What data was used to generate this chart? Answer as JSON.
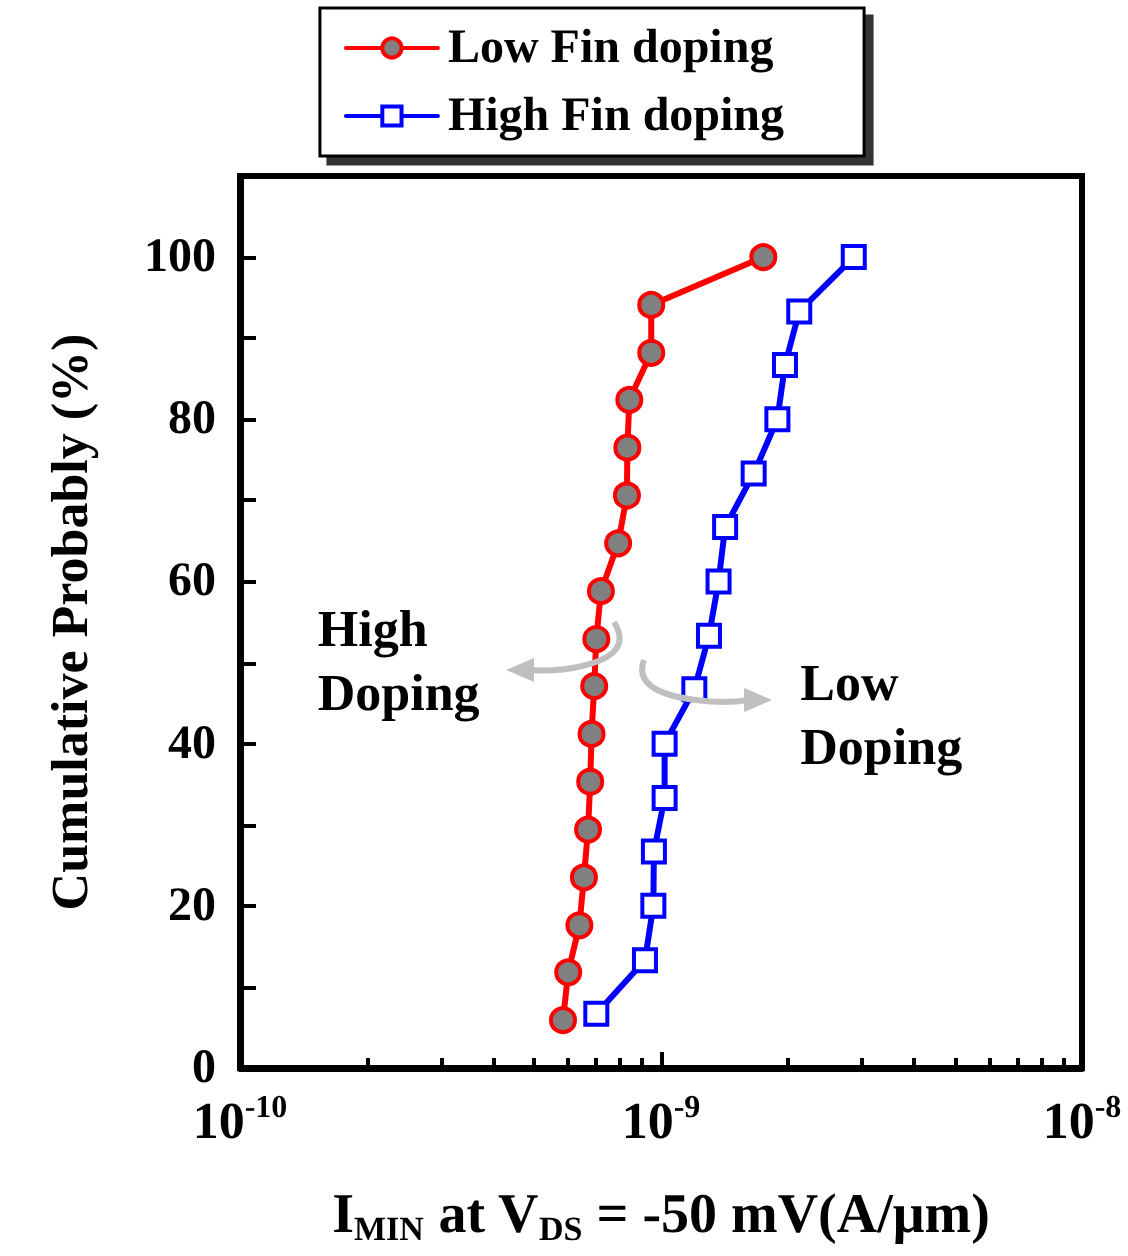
{
  "chart_data": {
    "type": "line",
    "xlabel": "I$_{MIN}$ at V$_{DS}$ = -50 mV(A/μm)",
    "ylabel": "Cumulative Probably (%)",
    "log": "x",
    "xlim": [
      1e-10,
      1e-08
    ],
    "xticks": [
      {
        "value": 1e-10,
        "label": "10$^{-10}$"
      },
      {
        "value": 1e-09,
        "label": "10$^{-9}$"
      },
      {
        "value": 1e-08,
        "label": "10$^{-8}$"
      }
    ],
    "ylim": [
      0,
      110
    ],
    "yticks": [
      0,
      20,
      40,
      60,
      80,
      100
    ],
    "grid": false,
    "legend": "top",
    "line_style": "solid",
    "annotations": [
      {
        "text": "High\nDoping",
        "x": 7e-10,
        "y": 53
      },
      {
        "text": "Low\nDoping",
        "x": 1.2e-09,
        "y": 47
      }
    ],
    "series": [
      {
        "name": "Low Fin doping",
        "color": "#ff0000",
        "marker": "circle",
        "x": [
          5.85e-10,
          6.02e-10,
          6.4e-10,
          6.56e-10,
          6.71e-10,
          6.79e-10,
          6.84e-10,
          6.94e-10,
          7.02e-10,
          7.2e-10,
          7.91e-10,
          8.3e-10,
          8.32e-10,
          8.41e-10,
          9.48e-10,
          9.48e-10,
          1.75e-09
        ],
        "values": [
          5.9,
          11.8,
          17.6,
          23.5,
          29.4,
          35.3,
          41.2,
          47.1,
          52.9,
          58.8,
          64.7,
          70.6,
          76.5,
          82.4,
          88.2,
          94.1,
          100
        ]
      },
      {
        "name": "High Fin doping",
        "color": "#0000ff",
        "marker": "square",
        "x": [
          7.02e-10,
          9.16e-10,
          9.59e-10,
          9.62e-10,
          1.02e-09,
          1.02e-09,
          1.2e-09,
          1.3e-09,
          1.37e-09,
          1.42e-09,
          1.66e-09,
          1.89e-09,
          1.97e-09,
          2.13e-09,
          2.87e-09
        ],
        "values": [
          6.7,
          13.3,
          20,
          26.7,
          33.3,
          40,
          46.7,
          53.3,
          60,
          66.7,
          73.3,
          80,
          86.7,
          93.3,
          100
        ]
      }
    ]
  }
}
